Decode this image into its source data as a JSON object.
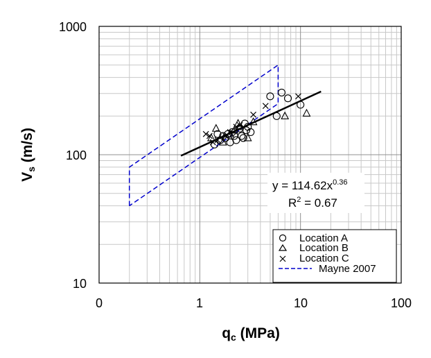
{
  "chart_data": {
    "type": "scatter",
    "x_scale": "log",
    "y_scale": "log",
    "xlim": [
      0.1,
      100
    ],
    "ylim": [
      10,
      1000
    ],
    "grid": true,
    "x_tick_labels": [
      "0",
      "1",
      "10",
      "100"
    ],
    "y_tick_labels": [
      "10",
      "100",
      "1000"
    ],
    "xlabel": {
      "main": "q",
      "sub": "c",
      "rest": " (MPa)"
    },
    "ylabel": {
      "main": "V",
      "sub": "s",
      "rest": " (m/s)"
    },
    "series": [
      {
        "name": "Location A",
        "marker": "circle",
        "points": [
          [
            1.4,
            120
          ],
          [
            1.5,
            145
          ],
          [
            1.6,
            130
          ],
          [
            1.7,
            140
          ],
          [
            1.8,
            135
          ],
          [
            1.9,
            145
          ],
          [
            2.0,
            125
          ],
          [
            2.1,
            150
          ],
          [
            2.2,
            140
          ],
          [
            2.3,
            130
          ],
          [
            2.5,
            160
          ],
          [
            2.6,
            140
          ],
          [
            2.7,
            135
          ],
          [
            2.8,
            175
          ],
          [
            2.9,
            155
          ],
          [
            3.0,
            165
          ],
          [
            3.2,
            150
          ],
          [
            5.0,
            285
          ],
          [
            5.8,
            200
          ],
          [
            6.5,
            305
          ],
          [
            7.5,
            275
          ],
          [
            10.0,
            245
          ]
        ]
      },
      {
        "name": "Location B",
        "marker": "triangle",
        "points": [
          [
            1.3,
            135
          ],
          [
            1.45,
            160
          ],
          [
            1.7,
            125
          ],
          [
            2.0,
            145
          ],
          [
            2.2,
            155
          ],
          [
            2.4,
            175
          ],
          [
            2.5,
            165
          ],
          [
            3.0,
            135
          ],
          [
            3.4,
            180
          ],
          [
            7.0,
            200
          ],
          [
            11.5,
            210
          ]
        ]
      },
      {
        "name": "Location C",
        "marker": "cross",
        "points": [
          [
            1.15,
            145
          ],
          [
            1.25,
            140
          ],
          [
            1.35,
            125
          ],
          [
            1.5,
            130
          ],
          [
            1.8,
            140
          ],
          [
            2.0,
            150
          ],
          [
            2.3,
            165
          ],
          [
            2.5,
            170
          ],
          [
            3.4,
            205
          ],
          [
            4.5,
            240
          ],
          [
            9.5,
            285
          ]
        ]
      }
    ],
    "trendline": {
      "a": 114.62,
      "b": 0.36,
      "x_range": [
        0.65,
        16.0
      ]
    },
    "mayne_2007": {
      "name": "Mayne 2007",
      "style": "dashed",
      "color": "#0000cc",
      "polygon": [
        [
          0.2,
          40
        ],
        [
          0.2,
          80
        ],
        [
          6,
          500
        ],
        [
          6,
          250
        ],
        [
          0.2,
          40
        ]
      ]
    },
    "annotation": {
      "equation_prefix": "y = 114.62x",
      "equation_exp": "0.36",
      "r2_prefix": "R",
      "r2_exp": "2",
      "r2_suffix": " = 0.67"
    },
    "legend_position": "bottom-right"
  }
}
